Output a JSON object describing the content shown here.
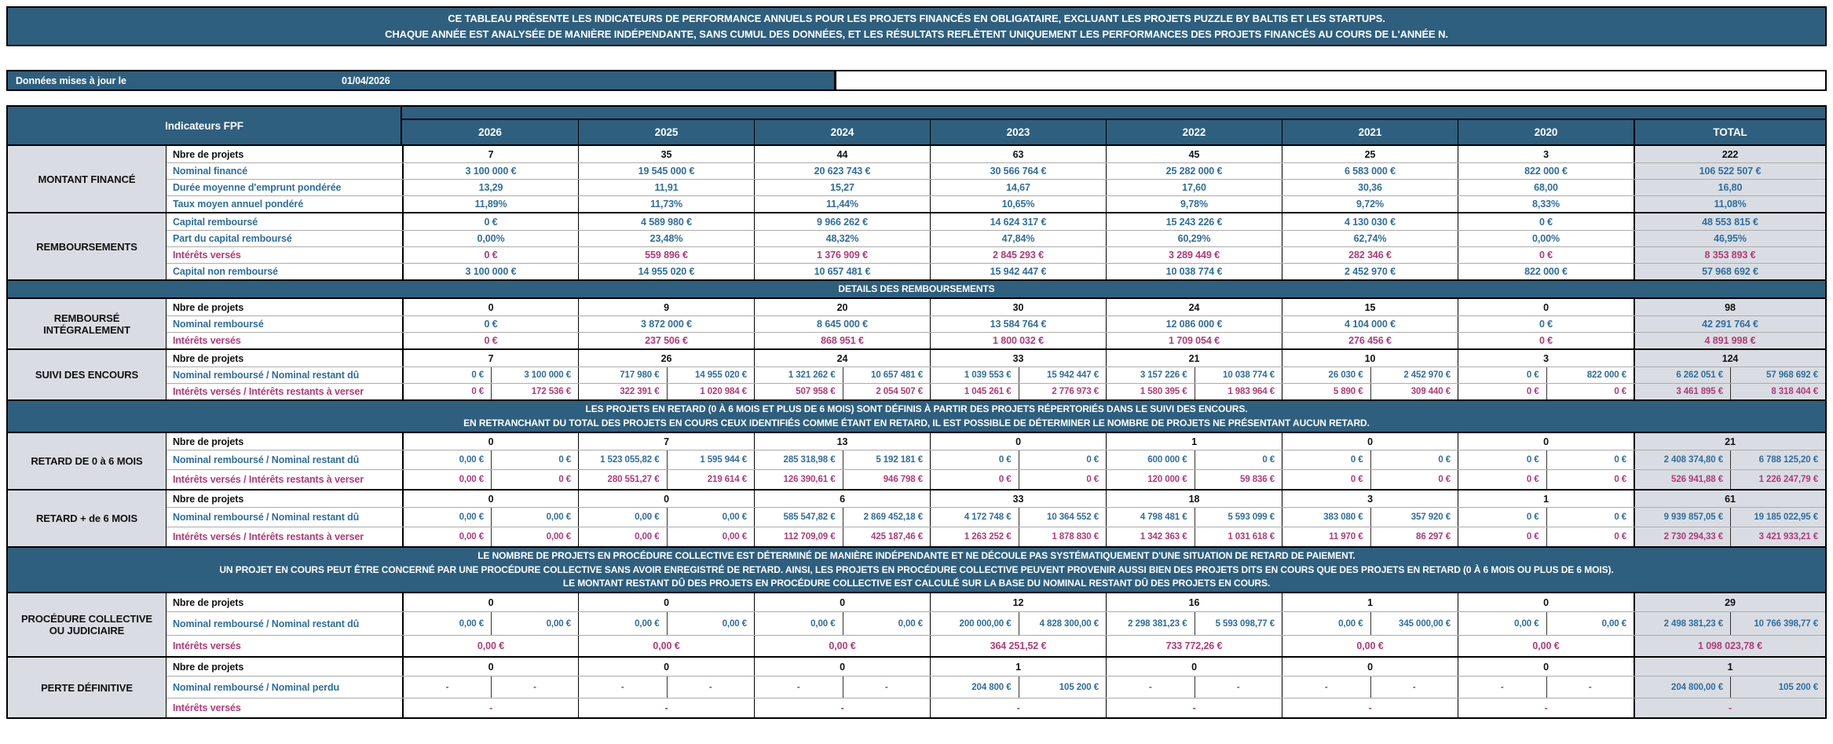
{
  "banner": {
    "line1": "CE TABLEAU PRÉSENTE LES INDICATEURS DE PERFORMANCE ANNUELS POUR LES PROJETS FINANCÉS EN OBLIGATAIRE, EXCLUANT LES PROJETS PUZZLE BY BALTIS ET LES STARTUPS.",
    "line2": "CHAQUE ANNÉE EST ANALYSÉE DE MANIÈRE INDÉPENDANTE, SANS CUMUL DES DONNÉES, ET LES RÉSULTATS REFLÈTENT UNIQUEMENT LES PERFORMANCES DES PROJETS FINANCÉS AU COURS DE L'ANNÉE N.",
    "bg_color": "#2F5F7E"
  },
  "update_bar": {
    "label": "Données mises à jour le",
    "date": "01/04/2026"
  },
  "colors": {
    "header_blue": "#2F5F7E",
    "value_blue": "#2F6E9E",
    "value_pink": "#B23A78",
    "light_gray": "#D9DDE3"
  },
  "table": {
    "corner_label": "Indicateurs FPF",
    "years": [
      "2026",
      "2025",
      "2024",
      "2023",
      "2022",
      "2021",
      "2020"
    ],
    "total_label": "TOTAL",
    "sections": [
      {
        "type": "group",
        "label": "MONTANT FINANCÉ",
        "rows": [
          {
            "label": "Nbre de projets",
            "style": "dark",
            "split": false,
            "values": [
              "7",
              "35",
              "44",
              "63",
              "45",
              "25",
              "3",
              "222"
            ]
          },
          {
            "label": "Nominal financé",
            "style": "blue",
            "split": false,
            "values": [
              "3 100 000 €",
              "19 545 000 €",
              "20 623 743 €",
              "30 566 764 €",
              "25 282 000 €",
              "6 583 000 €",
              "822 000 €",
              "106 522 507 €"
            ]
          },
          {
            "label": "Durée moyenne d'emprunt pondérée",
            "style": "blue",
            "split": false,
            "values": [
              "13,29",
              "11,91",
              "15,27",
              "14,67",
              "17,60",
              "30,36",
              "68,00",
              "16,80"
            ]
          },
          {
            "label": "Taux moyen annuel pondéré",
            "style": "blue",
            "split": false,
            "values": [
              "11,89%",
              "11,73%",
              "11,44%",
              "10,65%",
              "9,78%",
              "9,72%",
              "8,33%",
              "11,08%"
            ]
          }
        ]
      },
      {
        "type": "group",
        "label": "REMBOURSEMENTS",
        "rows": [
          {
            "label": "Capital remboursé",
            "style": "blue",
            "split": false,
            "values": [
              "0 €",
              "4 589 980 €",
              "9 966 262 €",
              "14 624 317 €",
              "15 243 226 €",
              "4 130 030 €",
              "0 €",
              "48 553 815 €"
            ]
          },
          {
            "label": "Part du capital remboursé",
            "style": "blue",
            "split": false,
            "values": [
              "0,00%",
              "23,48%",
              "48,32%",
              "47,84%",
              "60,29%",
              "62,74%",
              "0,00%",
              "46,95%"
            ]
          },
          {
            "label": "Intérêts versés",
            "style": "pink",
            "split": false,
            "values": [
              "0 €",
              "559 896 €",
              "1 376 909 €",
              "2 845 293 €",
              "3 289 449 €",
              "282 346 €",
              "0 €",
              "8 353 893 €"
            ]
          },
          {
            "label": "Capital non remboursé",
            "style": "blue",
            "split": false,
            "values": [
              "3 100 000 €",
              "14 955 020 €",
              "10 657 481 €",
              "15 942 447 €",
              "10 038 774 €",
              "2 452 970 €",
              "822 000 €",
              "57 968 692 €"
            ]
          }
        ]
      },
      {
        "type": "band",
        "lines": [
          "DETAILS DES REMBOURSEMENTS"
        ]
      },
      {
        "type": "group",
        "label": "REMBOURSÉ INTÉGRALEMENT",
        "rows": [
          {
            "label": "Nbre de projets",
            "style": "dark",
            "split": false,
            "values": [
              "0",
              "9",
              "20",
              "30",
              "24",
              "15",
              "0",
              "98"
            ]
          },
          {
            "label": "Nominal remboursé",
            "style": "blue",
            "split": false,
            "values": [
              "0 €",
              "3 872 000 €",
              "8 645 000 €",
              "13 584 764 €",
              "12 086 000 €",
              "4 104 000 €",
              "0 €",
              "42 291 764 €"
            ]
          },
          {
            "label": "Intérêts versés",
            "style": "pink",
            "split": false,
            "values": [
              "0 €",
              "237 506 €",
              "868 951 €",
              "1 800 032 €",
              "1 709 054 €",
              "276 456 €",
              "0 €",
              "4 891 998 €"
            ]
          }
        ]
      },
      {
        "type": "group",
        "label": "SUIVI DES ENCOURS",
        "rows": [
          {
            "label": "Nbre de projets",
            "style": "dark",
            "split": false,
            "values": [
              "7",
              "26",
              "24",
              "33",
              "21",
              "10",
              "3",
              "124"
            ]
          },
          {
            "label": "Nominal remboursé / Nominal restant dû",
            "style": "blue",
            "split": true,
            "values": [
              [
                "0 €",
                "3 100 000 €"
              ],
              [
                "717 980 €",
                "14 955 020 €"
              ],
              [
                "1 321 262 €",
                "10 657 481 €"
              ],
              [
                "1 039 553 €",
                "15 942 447 €"
              ],
              [
                "3 157 226 €",
                "10 038 774 €"
              ],
              [
                "26 030 €",
                "2 452 970 €"
              ],
              [
                "0 €",
                "822 000 €"
              ],
              [
                "6 262 051 €",
                "57 968 692 €"
              ]
            ]
          },
          {
            "label": "Intérêts versés / Intérêts restants à verser",
            "style": "pink",
            "split": true,
            "values": [
              [
                "0 €",
                "172 536 €"
              ],
              [
                "322 391 €",
                "1 020 984 €"
              ],
              [
                "507 958 €",
                "2 054 507 €"
              ],
              [
                "1 045 261 €",
                "2 776 973 €"
              ],
              [
                "1 580 395 €",
                "1 983 964 €"
              ],
              [
                "5 890 €",
                "309 440 €"
              ],
              [
                "0 €",
                "0 €"
              ],
              [
                "3 461 895 €",
                "8 318 404 €"
              ]
            ]
          }
        ]
      },
      {
        "type": "band",
        "lines": [
          "LES PROJETS EN RETARD (0 À 6 MOIS ET PLUS DE 6 MOIS) SONT DÉFINIS À PARTIR DES PROJETS RÉPERTORIÉS DANS LE SUIVI DES ENCOURS.",
          "EN RETRANCHANT DU TOTAL DES PROJETS EN COURS CEUX IDENTIFIÉS COMME ÉTANT EN RETARD, IL EST POSSIBLE DE DÉTERMINER LE NOMBRE DE PROJETS NE PRÉSENTANT AUCUN RETARD."
        ]
      },
      {
        "type": "group",
        "label": "RETARD DE 0 à 6 MOIS",
        "rows": [
          {
            "label": "Nbre de projets",
            "style": "dark",
            "split": false,
            "values": [
              "0",
              "7",
              "13",
              "0",
              "1",
              "0",
              "0",
              "21"
            ]
          },
          {
            "label": "Nominal remboursé / Nominal restant dû",
            "style": "blue",
            "split": true,
            "values": [
              [
                "0,00 €",
                "0 €"
              ],
              [
                "1 523 055,82 €",
                "1 595 944 €"
              ],
              [
                "285 318,98 €",
                "5 192 181 €"
              ],
              [
                "0 €",
                "0 €"
              ],
              [
                "600 000 €",
                "0 €"
              ],
              [
                "0 €",
                "0 €"
              ],
              [
                "0 €",
                "0 €"
              ],
              [
                "2 408 374,80 €",
                "6 788 125,20 €"
              ]
            ]
          },
          {
            "label": "Intérêts versés / Intérêts restants à verser",
            "style": "pink",
            "split": true,
            "values": [
              [
                "0,00 €",
                "0 €"
              ],
              [
                "280 551,27 €",
                "219 614 €"
              ],
              [
                "126 390,61 €",
                "946 798 €"
              ],
              [
                "0 €",
                "0 €"
              ],
              [
                "120 000 €",
                "59 836 €"
              ],
              [
                "0 €",
                "0 €"
              ],
              [
                "0 €",
                "0 €"
              ],
              [
                "526 941,88 €",
                "1 226 247,79 €"
              ]
            ]
          }
        ]
      },
      {
        "type": "group",
        "label": "RETARD + de 6 MOIS",
        "rows": [
          {
            "label": "Nbre de projets",
            "style": "dark",
            "split": false,
            "values": [
              "0",
              "0",
              "6",
              "33",
              "18",
              "3",
              "1",
              "61"
            ]
          },
          {
            "label": "Nominal remboursé / Nominal restant dû",
            "style": "blue",
            "split": true,
            "values": [
              [
                "0,00 €",
                "0,00 €"
              ],
              [
                "0,00 €",
                "0,00 €"
              ],
              [
                "585 547,82 €",
                "2 869 452,18 €"
              ],
              [
                "4 172 748 €",
                "10 364 552 €"
              ],
              [
                "4 798 481 €",
                "5 593 099 €"
              ],
              [
                "383 080 €",
                "357 920 €"
              ],
              [
                "0 €",
                "0 €"
              ],
              [
                "9 939 857,05 €",
                "19 185 022,95 €"
              ]
            ]
          },
          {
            "label": "Intérêts versés / Intérêts restants à verser",
            "style": "pink",
            "split": true,
            "values": [
              [
                "0,00 €",
                "0,00 €"
              ],
              [
                "0,00 €",
                "0,00 €"
              ],
              [
                "112 709,09 €",
                "425 187,46 €"
              ],
              [
                "1 263 252 €",
                "1 878 830 €"
              ],
              [
                "1 342 363 €",
                "1 031 618 €"
              ],
              [
                "11 970 €",
                "86 297 €"
              ],
              [
                "0 €",
                "0 €"
              ],
              [
                "2 730 294,33 €",
                "3 421 933,21 €"
              ]
            ]
          }
        ]
      },
      {
        "type": "band",
        "lines": [
          "LE NOMBRE DE PROJETS EN PROCÉDURE COLLECTIVE EST DÉTERMINÉ DE MANIÈRE INDÉPENDANTE ET NE DÉCOULE PAS SYSTÉMATIQUEMENT D'UNE SITUATION DE RETARD DE PAIEMENT.",
          "UN PROJET EN COURS PEUT ÊTRE CONCERNÉ PAR UNE PROCÉDURE COLLECTIVE SANS AVOIR ENREGISTRÉ DE RETARD. AINSI, LES PROJETS EN PROCÉDURE COLLECTIVE PEUVENT PROVENIR AUSSI BIEN DES PROJETS DITS EN COURS QUE DES PROJETS EN RETARD (0 À 6 MOIS OU PLUS DE 6 MOIS).",
          "LE MONTANT RESTANT DÛ DES PROJETS EN PROCÉDURE COLLECTIVE EST CALCULÉ SUR LA BASE DU NOMINAL RESTANT DÛ DES PROJETS EN COURS."
        ]
      },
      {
        "type": "group",
        "label": "PROCÉDURE COLLECTIVE OU JUDICIAIRE",
        "rows": [
          {
            "label": "Nbre de projets",
            "style": "dark",
            "split": false,
            "values": [
              "0",
              "0",
              "0",
              "12",
              "16",
              "1",
              "0",
              "29"
            ]
          },
          {
            "label": "Nominal remboursé / Nominal restant dû",
            "style": "blue",
            "split": true,
            "values": [
              [
                "0,00 €",
                "0,00 €"
              ],
              [
                "0,00 €",
                "0,00 €"
              ],
              [
                "0,00 €",
                "0,00 €"
              ],
              [
                "200 000,00 €",
                "4 828 300,00 €"
              ],
              [
                "2 298 381,23 €",
                "5 593 098,77 €"
              ],
              [
                "0,00 €",
                "345 000,00 €"
              ],
              [
                "0,00 €",
                "0,00 €"
              ],
              [
                "2 498 381,23 €",
                "10 766 398,77 €"
              ]
            ]
          },
          {
            "label": "Intérêts versés",
            "style": "pink",
            "split": false,
            "values": [
              "0,00 €",
              "0,00 €",
              "0,00 €",
              "364 251,52 €",
              "733 772,26 €",
              "0,00 €",
              "0,00 €",
              "1 098 023,78 €"
            ]
          }
        ]
      },
      {
        "type": "group",
        "label": "PERTE DÉFINITIVE",
        "rows": [
          {
            "label": "Nbre de projets",
            "style": "dark",
            "split": false,
            "values": [
              "0",
              "0",
              "0",
              "1",
              "0",
              "0",
              "0",
              "1"
            ]
          },
          {
            "label": "Nominal remboursé / Nominal perdu",
            "style": "blue",
            "split": true,
            "values": [
              [
                "-",
                "-"
              ],
              [
                "-",
                "-"
              ],
              [
                "-",
                "-"
              ],
              [
                "204 800 €",
                "105 200 €"
              ],
              [
                "-",
                "-"
              ],
              [
                "-",
                "-"
              ],
              [
                "-",
                "-"
              ],
              [
                "204 800,00 €",
                "105 200 €"
              ]
            ]
          },
          {
            "label": "Intérêts versés",
            "style": "pink",
            "split": false,
            "values": [
              "-",
              "-",
              "-",
              "-",
              "-",
              "-",
              "-",
              "-"
            ]
          }
        ]
      }
    ]
  }
}
